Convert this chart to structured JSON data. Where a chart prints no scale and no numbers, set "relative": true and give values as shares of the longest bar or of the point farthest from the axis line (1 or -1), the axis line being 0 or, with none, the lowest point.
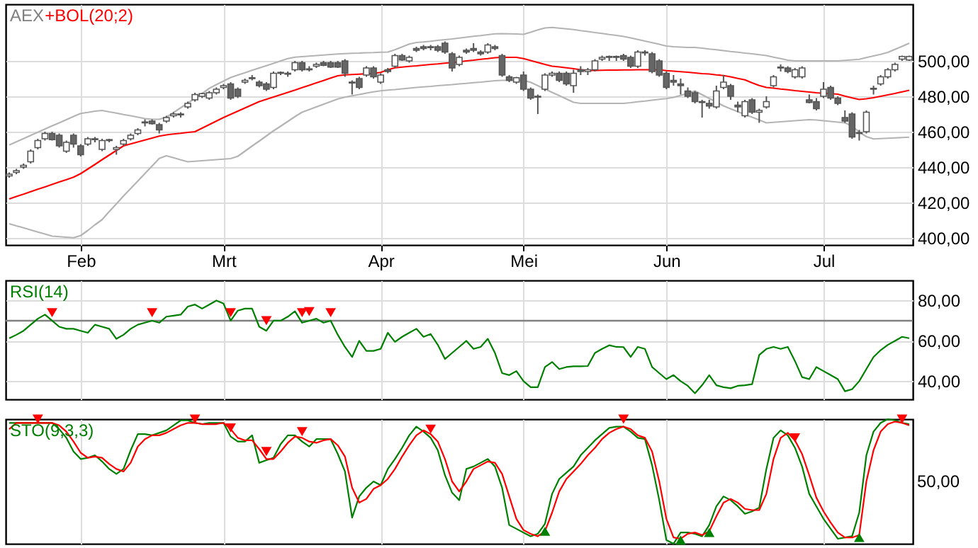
{
  "chart_data": [
    {
      "type": "candlestick",
      "title": "AEX",
      "categories": [
        null,
        null,
        null,
        null,
        null,
        null,
        null,
        null,
        null,
        null,
        "Feb",
        null,
        null,
        null,
        null,
        null,
        null,
        null,
        null,
        null,
        null,
        null,
        null,
        null,
        null,
        null,
        null,
        null,
        null,
        null,
        "Mrt",
        null,
        null,
        null,
        null,
        null,
        null,
        null,
        null,
        null,
        null,
        null,
        null,
        null,
        null,
        null,
        null,
        null,
        null,
        null,
        null,
        null,
        "Apr",
        null,
        null,
        null,
        null,
        null,
        null,
        null,
        null,
        null,
        null,
        null,
        null,
        null,
        null,
        null,
        null,
        null,
        null,
        null,
        "Mei",
        null,
        null,
        null,
        null,
        null,
        null,
        null,
        null,
        null,
        null,
        null,
        null,
        null,
        null,
        null,
        null,
        null,
        null,
        null,
        "Jun",
        null,
        null,
        null,
        null,
        null,
        null,
        null,
        null,
        null,
        null,
        null,
        null,
        null,
        null,
        null,
        null,
        null,
        null,
        null,
        null,
        null,
        "Jul",
        null,
        null,
        null,
        null,
        null,
        null,
        null,
        null,
        null,
        null,
        null,
        null
      ],
      "ohlc": [
        [
          435,
          437,
          434,
          436
        ],
        [
          437,
          439,
          436,
          438
        ],
        [
          440,
          442,
          439,
          441
        ],
        [
          443,
          450,
          442,
          449
        ],
        [
          451,
          456,
          450,
          455
        ],
        [
          456,
          460,
          455,
          459
        ],
        [
          459,
          460,
          455,
          455.5
        ],
        [
          458,
          459,
          451,
          452
        ],
        [
          449,
          455,
          448,
          454
        ],
        [
          458,
          459,
          451,
          453
        ],
        [
          452,
          453,
          446,
          447
        ],
        [
          453,
          457,
          452,
          456
        ],
        [
          456,
          457,
          454,
          455.5
        ],
        [
          450,
          456,
          449,
          455
        ],
        [
          455,
          456,
          454,
          455.5
        ],
        [
          450,
          452,
          447,
          451
        ],
        [
          453,
          456,
          452,
          455
        ],
        [
          456,
          459,
          455,
          458
        ],
        [
          459,
          462,
          458,
          461
        ],
        [
          465,
          467,
          463,
          465.5
        ],
        [
          466,
          467,
          464,
          464.5
        ],
        [
          464,
          465,
          459,
          461
        ],
        [
          466,
          469,
          465,
          468
        ],
        [
          469,
          471,
          468,
          470
        ],
        [
          470,
          471,
          468,
          469.5
        ],
        [
          474,
          477,
          473,
          476
        ],
        [
          478,
          482,
          477,
          481
        ],
        [
          480,
          482,
          479,
          481.5
        ],
        [
          479,
          483,
          478,
          482
        ],
        [
          482,
          485,
          481,
          484
        ],
        [
          485,
          487,
          484,
          486
        ],
        [
          487,
          488,
          478,
          479
        ],
        [
          484,
          485,
          479,
          480
        ],
        [
          488,
          490,
          487,
          489
        ],
        [
          490,
          492,
          489,
          490.5
        ],
        [
          488,
          489,
          485,
          486
        ],
        [
          487,
          488,
          483,
          484
        ],
        [
          485,
          494,
          484,
          493
        ],
        [
          493,
          494,
          492,
          493.5
        ],
        [
          493,
          494,
          491,
          492.5
        ],
        [
          495,
          500,
          494,
          499
        ],
        [
          499,
          500,
          494,
          495
        ],
        [
          495,
          497,
          494,
          495.5
        ],
        [
          497,
          499,
          496,
          498
        ],
        [
          499,
          500,
          497,
          497.5
        ],
        [
          499,
          500,
          496,
          496.5
        ],
        [
          499,
          500,
          496,
          496.5
        ],
        [
          500,
          501,
          491,
          493
        ],
        [
          488,
          489,
          481,
          487.5
        ],
        [
          490,
          491,
          484,
          485
        ],
        [
          492,
          497,
          491,
          496
        ],
        [
          496,
          497,
          490,
          491
        ],
        [
          488,
          493,
          487,
          492
        ],
        [
          495,
          496,
          493,
          494
        ],
        [
          497,
          504,
          496,
          503
        ],
        [
          503,
          504,
          500,
          500.5
        ],
        [
          500,
          503,
          499,
          502
        ],
        [
          507,
          508,
          505,
          506
        ],
        [
          508,
          509,
          506,
          507
        ],
        [
          508,
          509,
          506,
          507.5
        ],
        [
          508,
          509,
          505,
          506
        ],
        [
          510,
          511,
          504,
          505
        ],
        [
          504,
          505,
          494,
          496
        ],
        [
          498,
          503,
          497,
          502
        ],
        [
          506,
          507,
          504,
          505
        ],
        [
          507,
          510,
          505,
          506
        ],
        [
          505,
          506,
          503,
          504
        ],
        [
          505,
          510,
          504,
          509
        ],
        [
          508,
          509,
          506,
          507
        ],
        [
          503,
          504,
          491,
          492
        ],
        [
          491,
          492,
          488,
          489
        ],
        [
          488,
          491,
          487,
          490.5
        ],
        [
          492,
          494,
          483,
          484
        ],
        [
          484,
          485,
          478,
          479
        ],
        [
          480,
          481,
          470,
          479.5
        ],
        [
          484,
          493,
          483,
          492
        ],
        [
          492,
          494,
          491,
          493
        ],
        [
          493,
          494,
          488,
          489
        ],
        [
          493,
          494,
          486,
          487
        ],
        [
          486,
          495,
          482,
          493
        ],
        [
          495,
          497,
          492,
          494
        ],
        [
          494,
          496,
          492,
          495
        ],
        [
          495,
          501,
          494,
          500
        ],
        [
          501,
          503,
          500,
          502
        ],
        [
          502,
          503,
          500,
          502.5
        ],
        [
          502,
          503,
          500,
          502.5
        ],
        [
          503,
          504,
          500,
          501
        ],
        [
          502,
          503,
          496,
          497
        ],
        [
          497,
          506,
          496,
          505
        ],
        [
          505,
          506,
          503,
          504.5
        ],
        [
          504,
          505,
          493,
          494
        ],
        [
          500,
          501,
          491,
          492
        ],
        [
          493,
          494,
          484,
          485
        ],
        [
          489,
          492,
          486,
          488
        ],
        [
          487,
          490,
          481,
          486
        ],
        [
          483,
          485,
          479,
          480
        ],
        [
          482,
          483,
          476,
          477
        ],
        [
          477,
          478,
          468,
          476.5
        ],
        [
          476,
          478,
          473,
          474.5
        ],
        [
          474,
          486,
          473,
          483
        ],
        [
          485,
          492,
          484,
          488
        ],
        [
          486,
          487,
          478,
          480
        ],
        [
          475,
          477,
          471,
          474
        ],
        [
          469,
          478,
          468,
          477
        ],
        [
          478,
          479,
          470,
          471
        ],
        [
          471,
          473,
          465,
          472
        ],
        [
          474,
          480,
          473,
          477
        ],
        [
          486,
          492,
          485,
          491
        ],
        [
          496,
          498,
          494,
          496.5
        ],
        [
          496,
          497,
          493,
          494
        ],
        [
          491,
          496,
          490,
          495
        ],
        [
          491,
          497,
          490,
          496
        ],
        [
          478,
          481,
          476,
          476.5
        ],
        [
          477,
          479,
          472,
          473
        ],
        [
          480,
          488,
          479,
          484
        ],
        [
          485,
          486,
          478,
          479
        ],
        [
          479,
          480,
          475,
          476
        ],
        [
          468,
          472,
          465,
          466
        ],
        [
          470,
          471,
          456,
          457
        ],
        [
          459,
          461,
          455,
          459.5
        ],
        [
          460,
          472,
          459,
          471
        ],
        [
          484,
          486,
          481,
          484.5
        ],
        [
          487,
          492,
          486,
          491
        ],
        [
          491,
          496,
          490,
          495
        ],
        [
          495,
          499,
          494,
          498
        ],
        [
          501,
          503,
          500,
          502.5
        ],
        [
          500.5,
          503,
          500,
          502.5
        ]
      ],
      "series": [
        {
          "type": "line",
          "color": "#b4b4b4",
          "values": [
            452.5,
            454.3,
            456.1,
            457.9,
            459.7,
            461.5,
            463.3,
            465,
            466.8,
            468.6,
            470.3,
            470.9,
            471.6,
            472,
            471.2,
            470.5,
            469.7,
            469,
            468.2,
            467.4,
            467,
            467,
            468.2,
            470.8,
            473.5,
            476.2,
            478.8,
            481.5,
            484.5,
            486.6,
            488.6,
            490.6,
            492,
            493.3,
            494.7,
            496,
            497.3,
            498.6,
            500,
            501.3,
            502.1,
            502.4,
            502.7,
            503,
            503.3,
            503.6,
            503.9,
            504.1,
            504.3,
            504.4,
            504.6,
            504.7,
            504.9,
            505,
            506.3,
            507.9,
            509.5,
            510.4,
            510.7,
            511.1,
            511.6,
            512,
            512.4,
            512.9,
            513.4,
            513.9,
            514.3,
            514.8,
            515.3,
            515.4,
            515.3,
            515.2,
            515,
            516.2,
            517.5,
            518.6,
            518.9,
            518.5,
            518.1,
            517.7,
            517.1,
            516.6,
            516,
            515.5,
            514.9,
            514.4,
            513.8,
            513,
            512.1,
            511.2,
            510.3,
            509.4,
            508.4,
            508,
            507.8,
            507.6,
            507.6,
            507.2,
            506.7,
            506.3,
            505.8,
            505.3,
            504.9,
            504.4,
            504,
            503.5,
            503,
            502.1,
            501.3,
            500.4,
            500,
            500,
            500,
            500,
            500,
            500,
            500,
            500.3,
            500.6,
            500.9,
            501.9,
            502.8,
            503.7,
            504.8,
            506.5,
            508.2,
            510
          ]
        },
        {
          "type": "line",
          "name": "+BOL(20;2)",
          "color": "#ff0000",
          "values": [
            422,
            423.4,
            424.7,
            426.1,
            427.5,
            428.8,
            430.2,
            431.6,
            432.9,
            434.3,
            436.3,
            438.9,
            441.5,
            444.2,
            446.8,
            449.4,
            452,
            453.1,
            454.2,
            455.3,
            456.4,
            457.5,
            458.2,
            458.7,
            459.1,
            459.6,
            460,
            462,
            464,
            466,
            468,
            469.8,
            471.6,
            473.4,
            475.2,
            477,
            478.3,
            479.6,
            480.9,
            482.2,
            483.5,
            484.9,
            486.2,
            487.6,
            488.9,
            490.3,
            491.6,
            492.1,
            492.3,
            492.5,
            492.7,
            492.9,
            493.5,
            495,
            496.1,
            496.5,
            496.9,
            497.2,
            497.6,
            498,
            498.3,
            498.7,
            499.1,
            499.5,
            500,
            500.4,
            500.9,
            501.3,
            501.8,
            502,
            502,
            502,
            501.3,
            500.2,
            499.1,
            498,
            497,
            496.6,
            496.1,
            495.6,
            495,
            494.6,
            494.6,
            494.7,
            494.8,
            494.8,
            494.9,
            494.9,
            495,
            495,
            495,
            495,
            494.5,
            494.2,
            493.9,
            493.6,
            493.2,
            492.8,
            492.6,
            492.1,
            491.7,
            491,
            490.1,
            489.3,
            487.6,
            486.1,
            485,
            484.6,
            484.1,
            483.7,
            483.2,
            482.8,
            482.4,
            482,
            481.7,
            481.5,
            481.2,
            480.1,
            479.1,
            478.2,
            478.6,
            479.2,
            480,
            480.8,
            481.6,
            482.5,
            483.4
          ]
        },
        {
          "type": "line",
          "color": "#b4b4b4",
          "values": [
            408,
            406.8,
            405.7,
            404.5,
            403.3,
            402.2,
            401,
            400.7,
            400.4,
            400.1,
            401.3,
            404.2,
            407.4,
            410.3,
            414.9,
            419.2,
            423.7,
            427.9,
            432.1,
            436.4,
            440.6,
            444.9,
            446.4,
            445.3,
            444.1,
            443,
            443.3,
            443.6,
            443.9,
            444.2,
            444.5,
            444.8,
            446.1,
            449,
            451.9,
            454.7,
            457.6,
            460.5,
            463.1,
            465.8,
            468.5,
            471,
            472.5,
            474,
            475.5,
            477,
            478.5,
            479.5,
            480.3,
            481,
            481.8,
            482.5,
            483.1,
            483.5,
            483.8,
            484.2,
            484.6,
            485,
            485.3,
            485.6,
            486,
            486.3,
            486.6,
            487,
            487.3,
            487.7,
            488,
            488.4,
            488.8,
            489,
            489,
            489,
            489,
            487.9,
            486,
            484.1,
            482.2,
            480.4,
            478.5,
            476.6,
            476,
            476,
            476,
            476,
            476,
            476,
            476,
            476.4,
            476.9,
            477.3,
            477.8,
            478.3,
            478.7,
            479.4,
            480.5,
            481.7,
            483,
            480.9,
            478.8,
            476.7,
            474.6,
            472.9,
            471.3,
            469.7,
            468.2,
            466.6,
            465,
            465.3,
            465.6,
            465.9,
            466.2,
            466.5,
            466.8,
            466.6,
            466.2,
            465.8,
            465.4,
            465,
            463.2,
            459.8,
            457.2,
            455.9,
            456.1,
            456.3,
            456.5,
            456.7,
            456.9
          ]
        }
      ],
      "ylim": [
        396,
        532
      ],
      "yticks": [
        {
          "value": 400,
          "label": "400,00"
        },
        {
          "value": 420,
          "label": "420,00"
        },
        {
          "value": 440,
          "label": "440,00"
        },
        {
          "value": 460,
          "label": "460,00"
        },
        {
          "value": 480,
          "label": "480,00"
        },
        {
          "value": 500,
          "label": "500,00"
        }
      ],
      "grid": true
    },
    {
      "type": "line",
      "title": "RSI(14)",
      "categories": [
        null,
        null,
        null,
        null,
        null,
        null,
        null,
        null,
        null,
        null,
        null,
        null,
        null,
        null,
        null,
        null,
        null,
        null,
        null,
        null,
        null,
        null,
        null,
        null,
        null,
        null,
        null,
        null,
        null,
        null,
        null,
        null,
        null,
        null,
        null,
        null,
        null,
        null,
        null,
        null,
        null,
        null,
        null,
        null,
        null,
        null,
        null,
        null,
        null,
        null,
        null,
        null,
        null,
        null,
        null,
        null,
        null,
        null,
        null,
        null,
        null,
        null,
        null,
        null,
        null,
        null,
        null,
        null,
        null,
        null,
        null,
        null,
        null,
        null,
        null,
        null,
        null,
        null,
        null,
        null,
        null,
        null,
        null,
        null,
        null,
        null,
        null,
        null,
        null,
        null,
        null,
        null,
        null,
        null,
        null,
        null,
        null,
        null,
        null,
        null,
        null,
        null,
        null,
        null,
        null,
        null,
        null,
        null,
        null,
        null,
        null,
        null,
        null,
        null,
        null,
        null,
        null,
        null,
        null,
        null,
        null,
        null,
        null,
        null,
        null,
        null,
        null
      ],
      "series": [
        {
          "color": "#008000",
          "values": [
            61.3,
            63,
            65,
            68,
            71,
            73,
            70,
            67,
            66,
            66,
            65,
            64,
            68,
            67,
            66,
            61,
            63,
            66,
            68,
            69,
            70,
            69,
            72,
            72.5,
            73,
            77,
            78,
            76,
            78,
            80,
            78.5,
            70,
            75,
            76,
            76,
            67,
            65,
            70,
            70,
            72,
            74.7,
            69,
            70,
            71,
            69,
            70,
            63,
            57,
            52,
            60,
            55,
            55,
            56,
            64,
            59.5,
            62,
            64,
            66,
            62,
            63.4,
            58,
            51,
            54,
            57,
            60,
            56,
            57,
            61,
            54,
            44,
            43,
            45,
            40,
            37,
            37,
            47,
            49.5,
            46,
            47,
            47.4,
            47.4,
            47.5,
            54,
            56,
            57.8,
            57,
            56.9,
            52,
            57,
            56,
            47,
            44,
            41,
            43,
            40,
            37.7,
            34,
            38,
            43,
            38,
            37,
            36.5,
            37.7,
            38,
            38.5,
            53,
            56,
            57,
            56,
            57,
            50,
            42,
            41,
            47,
            45,
            43,
            41,
            35,
            36,
            40,
            46,
            52,
            55.4,
            58,
            60,
            62,
            61.3
          ]
        },
        {
          "type": "scatter",
          "color": "#ff0000",
          "marker": "triangle",
          "values": [
            null,
            null,
            null,
            null,
            null,
            null,
            74,
            null,
            null,
            null,
            null,
            null,
            null,
            null,
            null,
            null,
            null,
            null,
            null,
            null,
            74,
            null,
            null,
            null,
            null,
            null,
            null,
            null,
            null,
            null,
            null,
            74,
            null,
            null,
            null,
            null,
            70,
            null,
            null,
            null,
            null,
            74,
            74.5,
            null,
            null,
            74,
            null,
            null,
            null,
            null,
            null,
            null,
            null,
            null,
            null,
            null,
            null,
            null,
            null,
            null,
            null,
            null,
            null,
            null,
            null,
            null,
            null,
            null,
            null,
            null,
            null,
            null,
            null,
            null,
            null,
            null,
            null,
            null,
            null,
            null,
            null,
            null,
            null,
            null,
            null,
            null,
            null,
            null,
            null,
            null,
            null,
            null,
            null,
            null,
            null,
            null,
            null,
            null,
            null,
            null,
            null,
            null,
            null,
            null,
            null,
            null,
            null,
            null,
            null,
            null,
            null,
            null,
            null,
            null,
            null,
            null,
            null,
            null,
            null,
            null,
            null,
            null,
            null,
            null,
            null,
            null,
            null
          ]
        }
      ],
      "ylim": [
        31,
        90
      ],
      "yticks": [
        {
          "value": 40,
          "label": "40,00"
        },
        {
          "value": 60,
          "label": "60,00"
        },
        {
          "value": 80,
          "label": "80,00"
        }
      ],
      "ref_lines": [
        {
          "axis": "y",
          "value": 70,
          "color": "#808080"
        }
      ],
      "grid": true,
      "tick_labels": "y"
    },
    {
      "type": "line",
      "title": "STO(9,3,3)",
      "relative": true,
      "categories": [
        null,
        null,
        null,
        null,
        null,
        null,
        null,
        null,
        null,
        null,
        null,
        null,
        null,
        null,
        null,
        null,
        null,
        null,
        null,
        null,
        null,
        null,
        null,
        null,
        null,
        null,
        null,
        null,
        null,
        null,
        null,
        null,
        null,
        null,
        null,
        null,
        null,
        null,
        null,
        null,
        null,
        null,
        null,
        null,
        null,
        null,
        null,
        null,
        null,
        null,
        null,
        null,
        null,
        null,
        null,
        null,
        null,
        null,
        null,
        null,
        null,
        null,
        null,
        null,
        null,
        null,
        null,
        null,
        null,
        null,
        null,
        null,
        null,
        null,
        null,
        null,
        null,
        null,
        null,
        null,
        null,
        null,
        null,
        null,
        null,
        null,
        null,
        null,
        null,
        null,
        null,
        null,
        null,
        null,
        null,
        null,
        null,
        null,
        null,
        null,
        null,
        null,
        null,
        null,
        null,
        null,
        null,
        null,
        null,
        null,
        null,
        null,
        null,
        null,
        null,
        null,
        null,
        null,
        null,
        null,
        null,
        null,
        null,
        null,
        null,
        null,
        null
      ],
      "series": [
        {
          "color": "#008000",
          "values": [
            0.97,
            0.97,
            0.97,
            0.97,
            0.97,
            0.97,
            0.97,
            0.92,
            0.85,
            0.74,
            0.68,
            0.69,
            0.71,
            0.66,
            0.6,
            0.56,
            0.6,
            0.75,
            0.88,
            0.88,
            0.87,
            0.89,
            0.91,
            0.95,
            0.99,
            0.99,
            0.97,
            0.96,
            0.97,
            0.97,
            0.97,
            0.86,
            0.82,
            0.82,
            0.87,
            0.65,
            0.67,
            0.69,
            0.8,
            0.87,
            0.87,
            0.82,
            0.78,
            0.84,
            0.84,
            0.84,
            0.72,
            0.58,
            0.21,
            0.38,
            0.45,
            0.5,
            0.47,
            0.6,
            0.68,
            0.77,
            0.87,
            0.94,
            0.9,
            0.85,
            0.75,
            0.55,
            0.41,
            0.35,
            0.6,
            0.62,
            0.65,
            0.68,
            0.62,
            0.45,
            0.15,
            0.12,
            0.09,
            0.06,
            0.08,
            0.16,
            0.4,
            0.52,
            0.57,
            0.62,
            0.71,
            0.77,
            0.83,
            0.88,
            0.93,
            0.94,
            0.94,
            0.9,
            0.85,
            0.84,
            0.63,
            0.35,
            0.03,
            0,
            0.09,
            0.09,
            0.08,
            0.06,
            0.15,
            0.3,
            0.38,
            0.35,
            0.3,
            0.24,
            0.26,
            0.29,
            0.6,
            0.85,
            0.91,
            0.87,
            0.77,
            0.62,
            0.4,
            0.3,
            0.2,
            0.12,
            0.04,
            0.05,
            0.06,
            0.25,
            0.71,
            0.9,
            0.97,
            1,
            0.99,
            0.97,
            0.96
          ]
        },
        {
          "color": "#ff0000",
          "values": [
            0.92,
            0.97,
            0.97,
            0.97,
            0.97,
            0.97,
            0.97,
            0.95,
            0.9,
            0.82,
            0.73,
            0.69,
            0.7,
            0.69,
            0.64,
            0.6,
            0.58,
            0.65,
            0.78,
            0.84,
            0.87,
            0.87,
            0.89,
            0.92,
            0.95,
            0.97,
            0.97,
            0.96,
            0.96,
            0.96,
            0.97,
            0.92,
            0.85,
            0.83,
            0.83,
            0.76,
            0.68,
            0.68,
            0.74,
            0.81,
            0.86,
            0.85,
            0.82,
            0.81,
            0.83,
            0.84,
            0.79,
            0.7,
            0.45,
            0.33,
            0.36,
            0.44,
            0.47,
            0.52,
            0.6,
            0.7,
            0.79,
            0.87,
            0.91,
            0.88,
            0.82,
            0.68,
            0.5,
            0.42,
            0.5,
            0.6,
            0.63,
            0.66,
            0.65,
            0.56,
            0.38,
            0.2,
            0.11,
            0.08,
            0.06,
            0.1,
            0.25,
            0.42,
            0.52,
            0.58,
            0.64,
            0.71,
            0.77,
            0.84,
            0.89,
            0.92,
            0.94,
            0.92,
            0.87,
            0.85,
            0.74,
            0.5,
            0.2,
            0.05,
            0.04,
            0.08,
            0.09,
            0.07,
            0.1,
            0.22,
            0.33,
            0.36,
            0.33,
            0.28,
            0.27,
            0.27,
            0.4,
            0.68,
            0.85,
            0.89,
            0.83,
            0.72,
            0.55,
            0.37,
            0.26,
            0.17,
            0.09,
            0.05,
            0.05,
            0.07,
            0.5,
            0.75,
            0.9,
            0.96,
            0.98,
            0.97,
            0.95
          ]
        },
        {
          "type": "scatter",
          "color": "#ff0000",
          "marker": "triangle",
          "values": [
            null,
            null,
            null,
            null,
            1,
            null,
            null,
            null,
            null,
            null,
            null,
            null,
            null,
            null,
            null,
            null,
            null,
            null,
            null,
            null,
            null,
            null,
            null,
            null,
            null,
            null,
            1,
            null,
            null,
            null,
            null,
            0.93,
            null,
            null,
            null,
            null,
            0.74,
            null,
            null,
            null,
            null,
            0.9,
            null,
            null,
            null,
            null,
            null,
            null,
            null,
            null,
            null,
            null,
            null,
            null,
            null,
            null,
            null,
            null,
            null,
            0.92,
            null,
            null,
            null,
            null,
            null,
            null,
            null,
            null,
            null,
            null,
            null,
            null,
            null,
            null,
            null,
            null,
            null,
            null,
            null,
            null,
            null,
            null,
            null,
            null,
            null,
            null,
            1,
            null,
            null,
            null,
            null,
            null,
            null,
            null,
            null,
            null,
            null,
            null,
            null,
            null,
            null,
            null,
            null,
            null,
            null,
            null,
            null,
            null,
            null,
            null,
            0.85,
            null,
            null,
            null,
            null,
            null,
            null,
            null,
            null,
            null,
            null,
            null,
            null,
            null,
            null,
            1,
            null
          ]
        },
        {
          "type": "scatter",
          "color": "#008000",
          "marker": "triangle",
          "values": [
            null,
            null,
            null,
            null,
            null,
            null,
            null,
            null,
            null,
            null,
            null,
            null,
            null,
            null,
            null,
            null,
            null,
            null,
            null,
            null,
            null,
            null,
            null,
            null,
            null,
            null,
            null,
            null,
            null,
            null,
            null,
            null,
            null,
            null,
            null,
            null,
            null,
            null,
            null,
            null,
            null,
            null,
            null,
            null,
            null,
            null,
            null,
            null,
            null,
            null,
            null,
            null,
            null,
            null,
            null,
            null,
            null,
            null,
            null,
            null,
            null,
            null,
            null,
            null,
            null,
            null,
            null,
            null,
            null,
            null,
            null,
            null,
            null,
            null,
            null,
            0.1,
            null,
            null,
            null,
            null,
            null,
            null,
            null,
            null,
            null,
            null,
            null,
            null,
            null,
            null,
            null,
            null,
            null,
            null,
            0.03,
            null,
            null,
            null,
            0.09,
            null,
            null,
            null,
            null,
            null,
            null,
            null,
            null,
            null,
            null,
            null,
            null,
            null,
            null,
            null,
            null,
            null,
            null,
            null,
            null,
            0.05,
            null,
            null,
            null,
            null,
            null,
            null,
            null
          ]
        }
      ],
      "annotations": [
        "50,00"
      ],
      "grid": "x",
      "tick_labels": false
    }
  ]
}
